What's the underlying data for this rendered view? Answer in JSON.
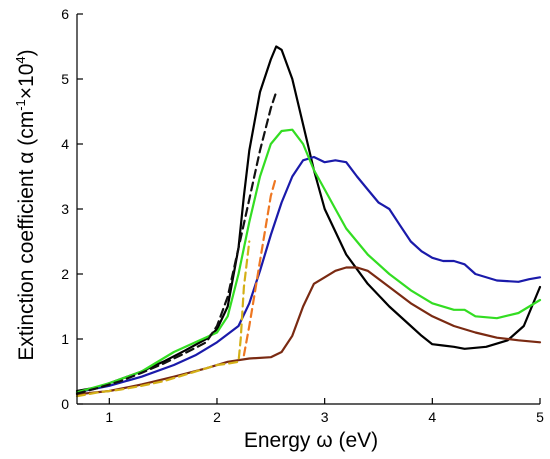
{
  "chart_data": {
    "type": "line",
    "xlabel": "Energy ω (eV)",
    "ylabel_parts": {
      "main": "Extinction coefficient α (cm",
      "exp1": "-1",
      "times": "×10",
      "exp2": "4",
      "close": ")"
    },
    "xlim": [
      0.7,
      5.0
    ],
    "ylim": [
      0,
      6
    ],
    "xticks": [
      1,
      2,
      3,
      4,
      5
    ],
    "yticks": [
      0,
      1,
      2,
      3,
      4,
      5,
      6
    ],
    "grid": false,
    "series": [
      {
        "color": "#000000",
        "dash": "solid",
        "x": [
          0.7,
          0.9,
          1.1,
          1.3,
          1.5,
          1.7,
          1.9,
          2.0,
          2.1,
          2.2,
          2.25,
          2.3,
          2.4,
          2.5,
          2.55,
          2.6,
          2.7,
          2.8,
          2.9,
          3.0,
          3.2,
          3.4,
          3.6,
          3.8,
          3.9,
          4.0,
          4.1,
          4.2,
          4.3,
          4.5,
          4.7,
          4.85,
          5.0
        ],
        "y": [
          0.2,
          0.26,
          0.38,
          0.5,
          0.65,
          0.82,
          1.0,
          1.15,
          1.5,
          2.4,
          3.2,
          3.9,
          4.8,
          5.3,
          5.5,
          5.45,
          5.0,
          4.3,
          3.6,
          3.0,
          2.3,
          1.85,
          1.5,
          1.2,
          1.05,
          0.92,
          0.9,
          0.88,
          0.85,
          0.88,
          0.98,
          1.2,
          1.8
        ]
      },
      {
        "color": "#1a1aaa",
        "dash": "solid",
        "x": [
          0.7,
          1.0,
          1.3,
          1.6,
          1.8,
          2.0,
          2.2,
          2.3,
          2.4,
          2.5,
          2.6,
          2.7,
          2.8,
          2.9,
          3.0,
          3.1,
          3.2,
          3.3,
          3.4,
          3.5,
          3.6,
          3.7,
          3.8,
          3.9,
          4.0,
          4.1,
          4.2,
          4.3,
          4.4,
          4.6,
          4.8,
          4.9,
          5.0
        ],
        "y": [
          0.18,
          0.28,
          0.42,
          0.6,
          0.75,
          0.95,
          1.2,
          1.55,
          2.05,
          2.6,
          3.1,
          3.5,
          3.75,
          3.8,
          3.72,
          3.75,
          3.72,
          3.5,
          3.3,
          3.1,
          3.0,
          2.75,
          2.5,
          2.35,
          2.25,
          2.2,
          2.2,
          2.15,
          2.0,
          1.9,
          1.88,
          1.92,
          1.95
        ]
      },
      {
        "color": "#33dd22",
        "dash": "solid",
        "x": [
          0.7,
          1.0,
          1.3,
          1.6,
          1.8,
          2.0,
          2.1,
          2.2,
          2.3,
          2.4,
          2.5,
          2.6,
          2.7,
          2.8,
          2.9,
          3.0,
          3.1,
          3.2,
          3.4,
          3.6,
          3.8,
          4.0,
          4.2,
          4.3,
          4.4,
          4.6,
          4.8,
          5.0
        ],
        "y": [
          0.18,
          0.32,
          0.5,
          0.8,
          0.95,
          1.1,
          1.35,
          2.0,
          2.8,
          3.5,
          4.0,
          4.2,
          4.22,
          4.0,
          3.6,
          3.3,
          3.0,
          2.7,
          2.3,
          2.0,
          1.75,
          1.55,
          1.45,
          1.45,
          1.35,
          1.32,
          1.4,
          1.6
        ]
      },
      {
        "color": "#7a2a12",
        "dash": "solid",
        "x": [
          0.7,
          1.0,
          1.3,
          1.6,
          1.9,
          2.1,
          2.3,
          2.5,
          2.6,
          2.7,
          2.8,
          2.9,
          3.0,
          3.1,
          3.2,
          3.3,
          3.4,
          3.6,
          3.8,
          4.0,
          4.2,
          4.4,
          4.6,
          4.8,
          5.0
        ],
        "y": [
          0.15,
          0.2,
          0.3,
          0.42,
          0.55,
          0.65,
          0.7,
          0.72,
          0.8,
          1.05,
          1.5,
          1.85,
          1.95,
          2.05,
          2.1,
          2.1,
          2.05,
          1.8,
          1.55,
          1.35,
          1.2,
          1.1,
          1.02,
          0.98,
          0.95
        ]
      },
      {
        "color": "#111111",
        "dash": "dash",
        "x": [
          0.7,
          0.9,
          1.1,
          1.3,
          1.5,
          1.7,
          1.9,
          2.0,
          2.1,
          2.2,
          2.3,
          2.4,
          2.5,
          2.55
        ],
        "y": [
          0.16,
          0.25,
          0.35,
          0.48,
          0.62,
          0.78,
          0.95,
          1.2,
          1.65,
          2.4,
          3.15,
          3.9,
          4.55,
          4.8
        ]
      },
      {
        "color": "#d4b017",
        "dash": "dash",
        "x": [
          0.7,
          0.9,
          1.1,
          1.3,
          1.5,
          1.7,
          1.9,
          2.0,
          2.1,
          2.2,
          2.22,
          2.25,
          2.3
        ],
        "y": [
          0.12,
          0.18,
          0.22,
          0.28,
          0.35,
          0.45,
          0.55,
          0.6,
          0.62,
          0.65,
          1.0,
          1.8,
          2.5
        ]
      },
      {
        "color": "#ee7722",
        "dash": "dash",
        "x": [
          2.25,
          2.3,
          2.35,
          2.4,
          2.45,
          2.5,
          2.55
        ],
        "y": [
          0.75,
          1.2,
          1.7,
          2.2,
          2.7,
          3.2,
          3.5
        ]
      }
    ]
  }
}
